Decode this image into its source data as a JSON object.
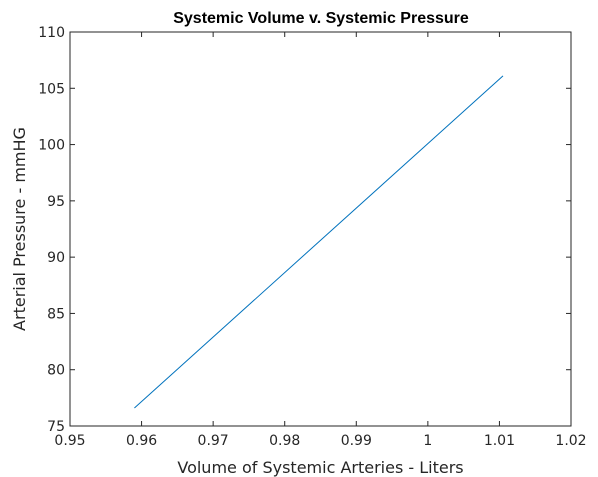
{
  "chart_data": {
    "type": "line",
    "title": "Systemic Volume v. Systemic Pressure",
    "xlabel": "Volume of Systemic Arteries - Liters",
    "ylabel": "Arterial Pressure - mmHG",
    "xlim": [
      0.95,
      1.02
    ],
    "ylim": [
      75,
      110
    ],
    "x_ticks": [
      0.95,
      0.96,
      0.97,
      0.98,
      0.99,
      1.0,
      1.01,
      1.02
    ],
    "x_tick_labels": [
      "0.95",
      "0.96",
      "0.97",
      "0.98",
      "0.99",
      "1",
      "1.01",
      "1.02"
    ],
    "y_ticks": [
      75,
      80,
      85,
      90,
      95,
      100,
      105,
      110
    ],
    "y_tick_labels": [
      "75",
      "80",
      "85",
      "90",
      "95",
      "100",
      "105",
      "110"
    ],
    "grid": false,
    "series": [
      {
        "color": "#0072BD",
        "x": [
          0.959,
          1.0105
        ],
        "y": [
          76.6,
          106.1
        ]
      }
    ]
  }
}
